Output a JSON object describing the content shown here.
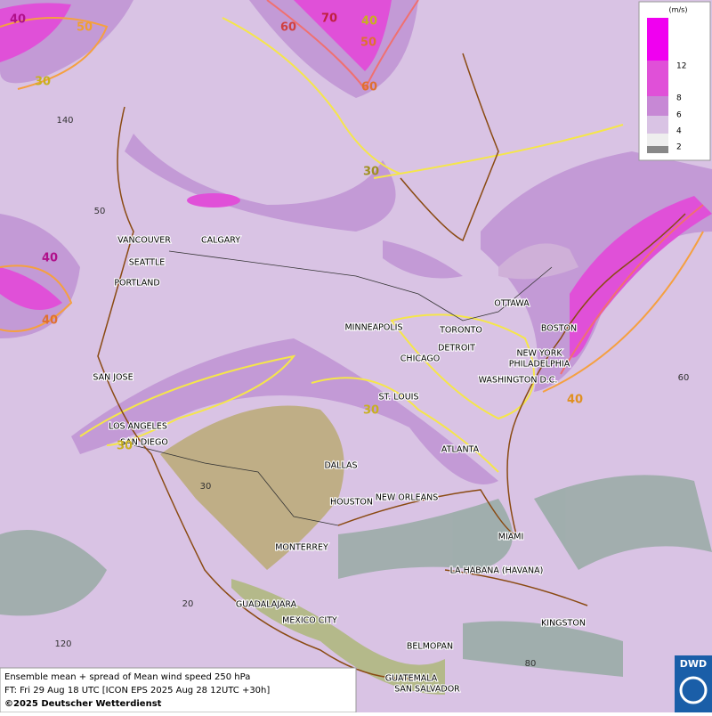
{
  "map": {
    "cities": [
      "VANCOUVER",
      "CALGARY",
      "SEATTLE",
      "PORTLAND",
      "SAN JOSE",
      "LOS ANGELES",
      "SAN DIEGO",
      "MINNEAPOLIS",
      "TORONTO",
      "DETROIT",
      "CHICAGO",
      "OTTAWA",
      "BOSTON",
      "NEW YORK",
      "PHILADELPHIA",
      "WASHINGTON D.C.",
      "ST. LOUIS",
      "ATLANTA",
      "DALLAS",
      "HOUSTON",
      "NEW ORLEANS",
      "MIAMI",
      "MONTERREY",
      "LA HABANA (HAVANA)",
      "GUADALAJARA",
      "MEXICO CITY",
      "KINGSTON",
      "BELMOPAN",
      "GUATEMALA",
      "SAN SALVADOR"
    ],
    "contour_labels": [
      "40",
      "50",
      "30",
      "60",
      "70",
      "40",
      "50",
      "60",
      "30",
      "40",
      "40",
      "30",
      "30",
      "40"
    ],
    "grid_labels": [
      "140",
      "50",
      "60",
      "30",
      "20",
      "120",
      "80"
    ]
  },
  "legend": {
    "unit": "(m/s)",
    "levels": [
      "12",
      "8",
      "6",
      "4",
      "2"
    ]
  },
  "caption": {
    "line1": "Ensemble mean + spread of Mean wind speed 250 hPa",
    "line2": "FT: Fri 29 Aug 18 UTC [ICON EPS 2025 Aug 28 12UTC +30h]",
    "line3": "©2025 Deutscher Wetterdienst"
  },
  "logo": "DWD"
}
